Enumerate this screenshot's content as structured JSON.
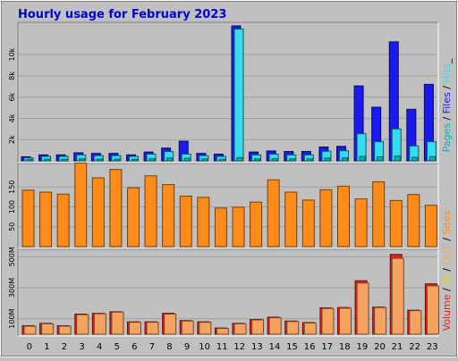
{
  "chart_data": [
    {
      "type": "bar",
      "title": "Hourly usage for February 2023",
      "panel": "hits-files-pages",
      "categories": [
        "0",
        "1",
        "2",
        "3",
        "4",
        "5",
        "6",
        "7",
        "8",
        "9",
        "10",
        "11",
        "12",
        "13",
        "14",
        "15",
        "16",
        "17",
        "18",
        "19",
        "20",
        "21",
        "22",
        "23"
      ],
      "ytick_labels": [
        "2k",
        "4k",
        "6k",
        "8k",
        "10k"
      ],
      "ytick_values": [
        2000,
        4000,
        6000,
        8000,
        10000
      ],
      "ylim": [
        0,
        12700
      ],
      "series": [
        {
          "name": "Hits",
          "color": "#1a1aee",
          "values": [
            380,
            560,
            560,
            760,
            700,
            700,
            560,
            830,
            1200,
            1850,
            700,
            630,
            12700,
            830,
            930,
            880,
            880,
            1300,
            1360,
            7050,
            5050,
            11200,
            4850,
            7200
          ]
        },
        {
          "name": "Files",
          "color": "#33ddee",
          "values": [
            280,
            420,
            420,
            560,
            490,
            490,
            420,
            630,
            880,
            630,
            490,
            420,
            12400,
            560,
            630,
            560,
            560,
            900,
            950,
            2550,
            1800,
            3000,
            1400,
            1800
          ]
        },
        {
          "name": "Pages",
          "color": "#00b4b4",
          "values": [
            120,
            150,
            150,
            180,
            160,
            160,
            140,
            200,
            260,
            240,
            180,
            150,
            300,
            190,
            200,
            190,
            190,
            260,
            270,
            420,
            380,
            450,
            330,
            400
          ]
        }
      ],
      "legend": [
        {
          "text": "Pages",
          "color": "#00b4b4"
        },
        {
          "text": " / ",
          "color": "#000000"
        },
        {
          "text": "Files",
          "color": "#1a1aee"
        },
        {
          "text": " / ",
          "color": "#000000"
        },
        {
          "text": "Hits",
          "color": "#33ddee"
        },
        {
          "text": "_",
          "color": "#000000"
        }
      ]
    },
    {
      "type": "bar",
      "panel": "sites",
      "categories": [
        "0",
        "1",
        "2",
        "3",
        "4",
        "5",
        "6",
        "7",
        "8",
        "9",
        "10",
        "11",
        "12",
        "13",
        "14",
        "15",
        "16",
        "17",
        "18",
        "19",
        "20",
        "21",
        "22",
        "23"
      ],
      "ytick_labels": [
        "50",
        "100",
        "150"
      ],
      "ytick_values": [
        50,
        100,
        150
      ],
      "ylim": [
        0,
        200
      ],
      "series": [
        {
          "name": "Sites",
          "color": "#ff8c1a",
          "values": [
            142,
            137,
            132,
            210,
            173,
            194,
            148,
            178,
            156,
            127,
            124,
            97,
            99,
            112,
            168,
            137,
            117,
            143,
            152,
            120,
            163,
            116,
            131,
            104
          ]
        }
      ],
      "legend": [
        {
          "text": "Sites",
          "color": "#ff8c1a"
        }
      ]
    },
    {
      "type": "bar",
      "panel": "volume",
      "categories": [
        "0",
        "1",
        "2",
        "3",
        "4",
        "5",
        "6",
        "7",
        "8",
        "9",
        "10",
        "11",
        "12",
        "13",
        "14",
        "15",
        "16",
        "17",
        "18",
        "19",
        "20",
        "21",
        "22",
        "23"
      ],
      "ytick_labels": [
        "100M",
        "300M",
        "500M"
      ],
      "ytick_values": [
        100,
        300,
        500
      ],
      "ylim": [
        0,
        525
      ],
      "series": [
        {
          "name": "Volume",
          "color": "#ee1a1a",
          "values": [
            55,
            70,
            55,
            130,
            135,
            145,
            80,
            80,
            135,
            88,
            80,
            40,
            70,
            95,
            110,
            85,
            75,
            170,
            172,
            345,
            175,
            515,
            155,
            325
          ]
        },
        {
          "name": "OUT",
          "color": "#f4a460",
          "values": [
            52,
            67,
            52,
            126,
            132,
            142,
            77,
            77,
            130,
            85,
            77,
            37,
            67,
            92,
            106,
            82,
            72,
            166,
            168,
            330,
            172,
            490,
            152,
            312
          ]
        }
      ],
      "legend": [
        {
          "text": "Volume",
          "color": "#ee1a1a"
        },
        {
          "text": " / ",
          "color": "#000000"
        },
        {
          "text": "IN",
          "color": "#dddd11"
        },
        {
          "text": " / ",
          "color": "#000000"
        },
        {
          "text": "OUT",
          "color": "#f4a460"
        },
        {
          "text": " / ",
          "color": "#000000"
        },
        {
          "text": "Sites",
          "color": "#ff8c1a"
        }
      ]
    }
  ]
}
